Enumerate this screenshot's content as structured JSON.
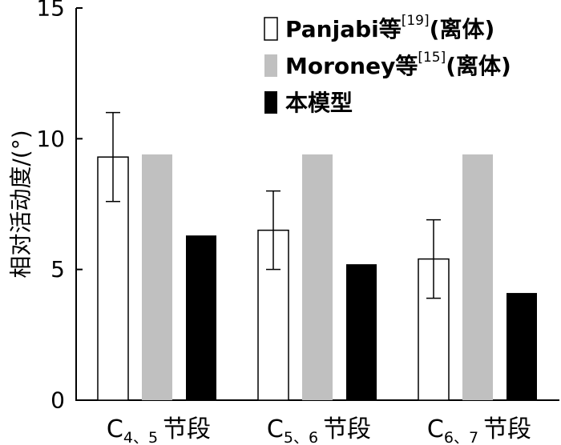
{
  "chart_data": {
    "type": "bar",
    "ylabel": "相对活动度/(°)",
    "ylim": [
      0,
      15
    ],
    "yticks": [
      0,
      5,
      10,
      15
    ],
    "categories": [
      {
        "main": "C",
        "sub": "4、5",
        "suffix": "节段"
      },
      {
        "main": "C",
        "sub": "5、6",
        "suffix": "节段"
      },
      {
        "main": "C",
        "sub": "6、7",
        "suffix": "节段"
      }
    ],
    "series": [
      {
        "legend": {
          "text": "Panjabi等",
          "sup": "[19]",
          "tail": "(离体)"
        },
        "color": "#ffffff",
        "stroke": "#000000",
        "values": [
          9.3,
          6.5,
          5.4
        ],
        "errors": [
          [
            7.6,
            11.0
          ],
          [
            5.0,
            8.0
          ],
          [
            3.9,
            6.9
          ]
        ]
      },
      {
        "legend": {
          "text": "Moroney等",
          "sup": "[15]",
          "tail": "(离体)"
        },
        "color": "#c0c0c0",
        "stroke": "none",
        "values": [
          9.4,
          9.4,
          9.4
        ]
      },
      {
        "legend": {
          "text": "本模型",
          "sup": "",
          "tail": ""
        },
        "color": "#000000",
        "stroke": "none",
        "values": [
          6.3,
          5.2,
          4.1
        ]
      }
    ],
    "grid": false,
    "legend_position": "top-right"
  }
}
